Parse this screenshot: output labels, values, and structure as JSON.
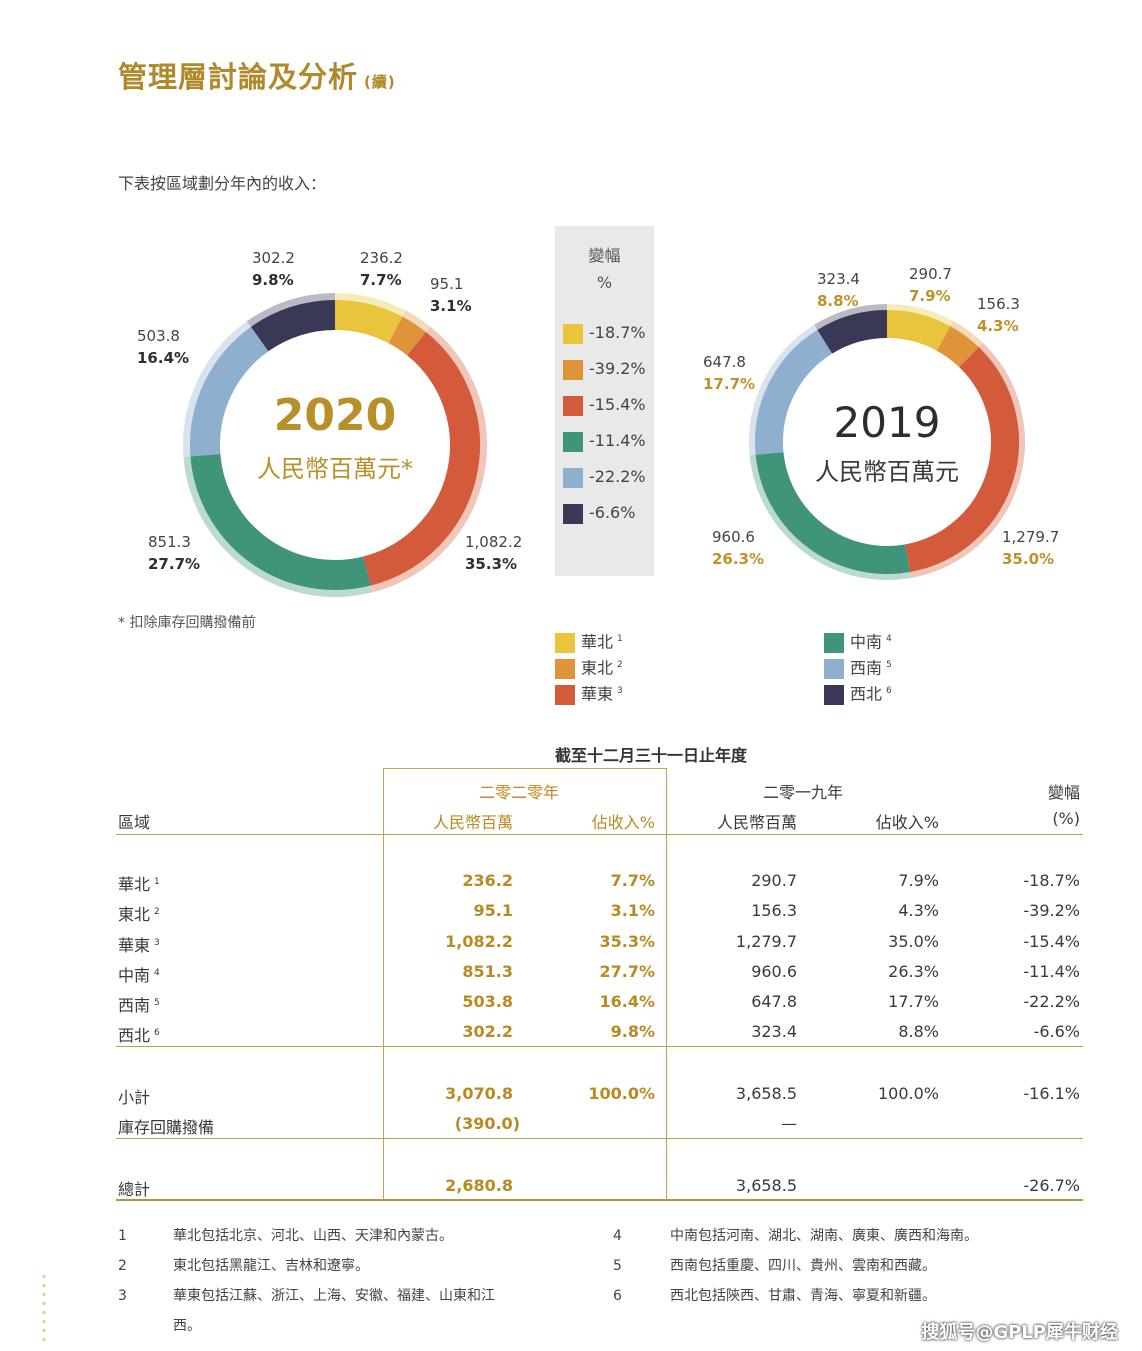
{
  "title": "管理層討論及分析",
  "title_suffix": "(續)",
  "intro": "下表按區域劃分年內的收入：",
  "colors": {
    "north": "#e8c53d",
    "northeast": "#e09439",
    "east": "#d35a3a",
    "central_south": "#3f9479",
    "southwest": "#8fafcf",
    "northwest": "#3a3857"
  },
  "chart_data": [
    {
      "type": "pie",
      "title": "2020",
      "subtitle": "人民幣百萬元*",
      "categories": [
        "華北",
        "東北",
        "華東",
        "中南",
        "西南",
        "西北"
      ],
      "values": [
        236.2,
        95.1,
        1082.2,
        851.3,
        503.8,
        302.2
      ],
      "value_labels": [
        "236.2",
        "95.1",
        "1,082.2",
        "851.3",
        "503.8",
        "302.2"
      ],
      "percent_labels": [
        "7.7%",
        "3.1%",
        "35.3%",
        "27.7%",
        "16.4%",
        "9.8%"
      ]
    },
    {
      "type": "pie",
      "title": "2019",
      "subtitle": "人民幣百萬元",
      "categories": [
        "華北",
        "東北",
        "華東",
        "中南",
        "西南",
        "西北"
      ],
      "values": [
        290.7,
        156.3,
        1279.7,
        960.6,
        647.8,
        323.4
      ],
      "value_labels": [
        "290.7",
        "156.3",
        "1,279.7",
        "960.6",
        "647.8",
        "323.4"
      ],
      "percent_labels": [
        "7.9%",
        "4.3%",
        "35.0%",
        "26.3%",
        "17.7%",
        "8.8%"
      ]
    }
  ],
  "change_box": {
    "header_1": "變幅",
    "header_2": "%",
    "items": [
      "-18.7%",
      "-39.2%",
      "-15.4%",
      "-11.4%",
      "-22.2%",
      "-6.6%"
    ]
  },
  "footnote_star": "* 扣除庫存回購撥備前",
  "legend": [
    {
      "label": "華北",
      "sup": "1"
    },
    {
      "label": "東北",
      "sup": "2"
    },
    {
      "label": "華東",
      "sup": "3"
    },
    {
      "label": "中南",
      "sup": "4"
    },
    {
      "label": "西南",
      "sup": "5"
    },
    {
      "label": "西北",
      "sup": "6"
    }
  ],
  "table": {
    "period": "截至十二月三十一日止年度",
    "year_2020": "二零二零年",
    "year_2019": "二零一九年",
    "change": "變幅",
    "region": "區域",
    "rmb_m": "人民幣百萬",
    "pct_rev": "佔收入%",
    "pct_unit": "(%)",
    "rows": [
      {
        "region": "華北",
        "sup": "1",
        "v20": "236.2",
        "p20": "7.7%",
        "v19": "290.7",
        "p19": "7.9%",
        "chg": "-18.7%"
      },
      {
        "region": "東北",
        "sup": "2",
        "v20": "95.1",
        "p20": "3.1%",
        "v19": "156.3",
        "p19": "4.3%",
        "chg": "-39.2%"
      },
      {
        "region": "華東",
        "sup": "3",
        "v20": "1,082.2",
        "p20": "35.3%",
        "v19": "1,279.7",
        "p19": "35.0%",
        "chg": "-15.4%"
      },
      {
        "region": "中南",
        "sup": "4",
        "v20": "851.3",
        "p20": "27.7%",
        "v19": "960.6",
        "p19": "26.3%",
        "chg": "-11.4%"
      },
      {
        "region": "西南",
        "sup": "5",
        "v20": "503.8",
        "p20": "16.4%",
        "v19": "647.8",
        "p19": "17.7%",
        "chg": "-22.2%"
      },
      {
        "region": "西北",
        "sup": "6",
        "v20": "302.2",
        "p20": "9.8%",
        "v19": "323.4",
        "p19": "8.8%",
        "chg": "-6.6%"
      }
    ],
    "subtotal": {
      "label": "小計",
      "v20": "3,070.8",
      "p20": "100.0%",
      "v19": "3,658.5",
      "p19": "100.0%",
      "chg": "-16.1%"
    },
    "buyback": {
      "label": "庫存回購撥備",
      "v20": "(390.0)",
      "v19": "—"
    },
    "total": {
      "label": "總計",
      "v20": "2,680.8",
      "v19": "3,658.5",
      "chg": "-26.7%"
    }
  },
  "footnotes": [
    {
      "num": "1",
      "text": "華北包括北京、河北、山西、天津和內蒙古。"
    },
    {
      "num": "2",
      "text": "東北包括黑龍江、吉林和遼寧。"
    },
    {
      "num": "3",
      "text": "華東包括江蘇、浙江、上海、安徽、福建、山東和江"
    },
    {
      "num": "",
      "text": "西。"
    },
    {
      "num": "4",
      "text": "中南包括河南、湖北、湖南、廣東、廣西和海南。"
    },
    {
      "num": "5",
      "text": "西南包括重慶、四川、貴州、雲南和西藏。"
    },
    {
      "num": "6",
      "text": "西北包括陝西、甘肅、青海、寧夏和新疆。"
    }
  ],
  "watermark": "搜狐号@GPLP犀牛财经"
}
